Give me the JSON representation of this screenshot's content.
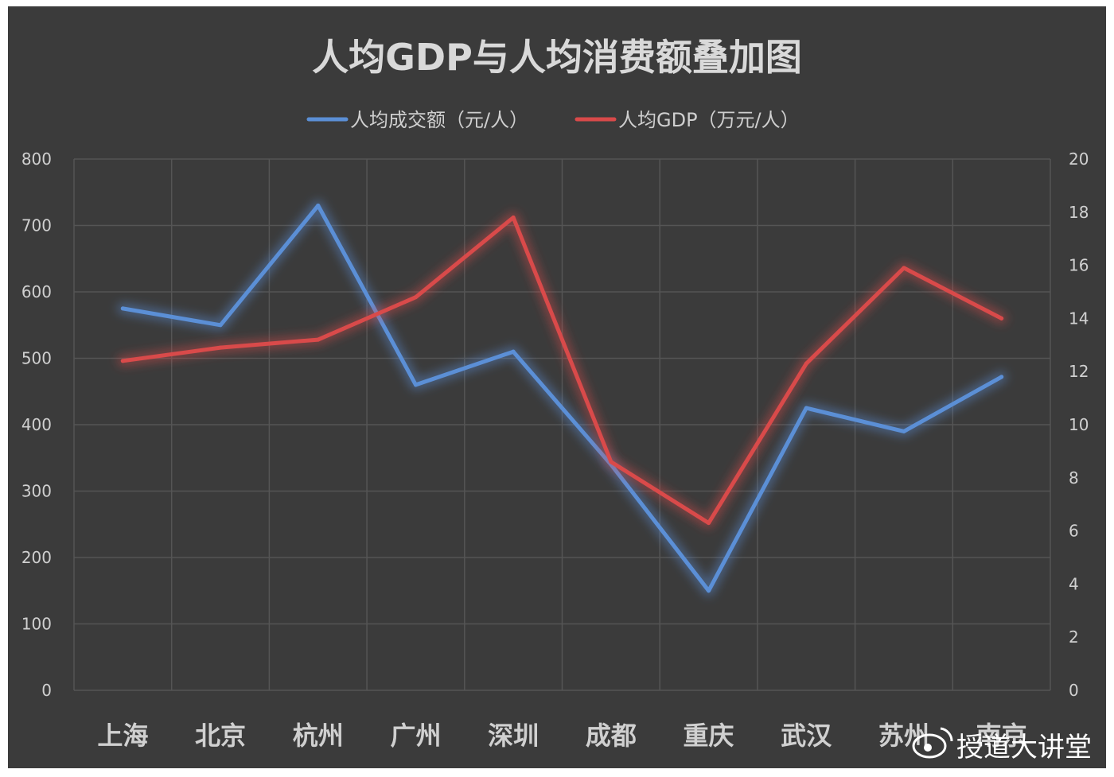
{
  "chart_data": {
    "type": "line",
    "title": "人均GDP与人均消费额叠加图",
    "categories": [
      "上海",
      "北京",
      "杭州",
      "广州",
      "深圳",
      "成都",
      "重庆",
      "武汉",
      "苏州",
      "南京"
    ],
    "series": [
      {
        "name": "人均成交额（元/人）",
        "axis": "left",
        "color": "#5b8fd6",
        "values": [
          575,
          550,
          730,
          460,
          510,
          340,
          150,
          425,
          390,
          472
        ]
      },
      {
        "name": "人均GDP（万元/人）",
        "axis": "right",
        "color": "#d94a4a",
        "values": [
          12.4,
          12.9,
          13.2,
          14.8,
          17.8,
          8.6,
          6.3,
          12.3,
          15.9,
          14.0
        ]
      }
    ],
    "y_left": {
      "min": 0,
      "max": 800,
      "ticks": [
        "0",
        "100",
        "200",
        "300",
        "400",
        "500",
        "600",
        "700",
        "800"
      ]
    },
    "y_right": {
      "min": 0,
      "max": 20,
      "ticks": [
        "0",
        "2",
        "4",
        "6",
        "8",
        "10",
        "12",
        "14",
        "16",
        "18",
        "20"
      ]
    },
    "grid": true,
    "legend_position": "top-center"
  },
  "watermark": {
    "text": "授道大讲堂",
    "icon": "weibo-icon"
  }
}
